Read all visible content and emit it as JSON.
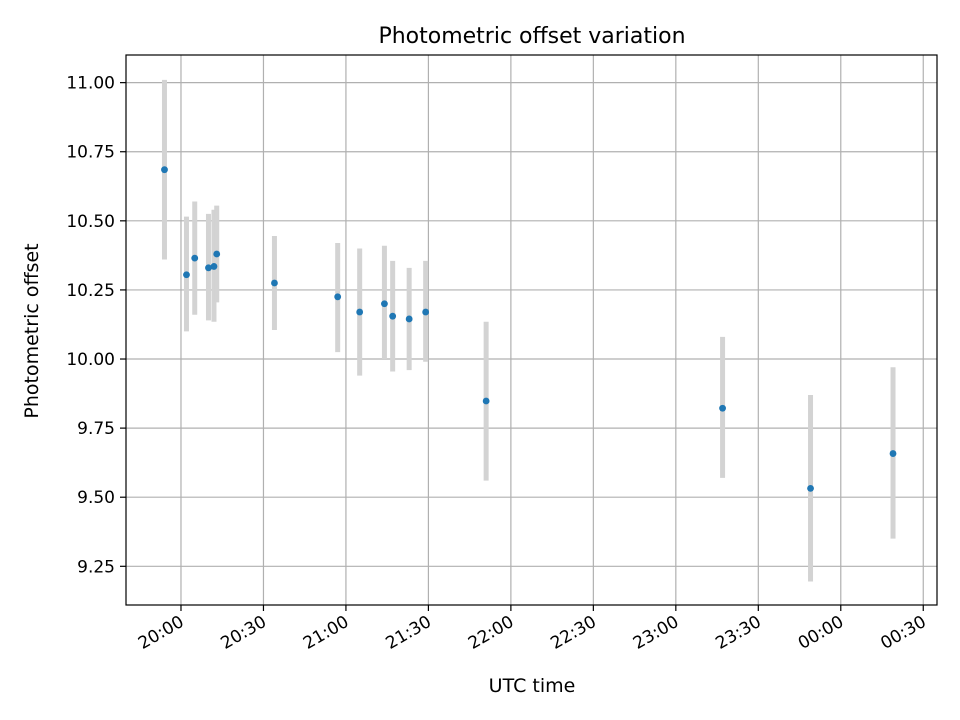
{
  "chart_data": {
    "type": "scatter",
    "title": "Photometric offset variation",
    "xlabel": "UTC time",
    "ylabel": "Photometric offset",
    "grid": true,
    "colors": {
      "points": "#1f77b4",
      "errorbars": "#d3d3d3",
      "grid": "#b0b0b0"
    },
    "xlim": [
      "19:40",
      "00:35"
    ],
    "ylim": [
      9.11,
      11.1
    ],
    "x_ticks": [
      "20:00",
      "20:30",
      "21:00",
      "21:30",
      "22:00",
      "22:30",
      "23:00",
      "23:30",
      "00:00",
      "00:30"
    ],
    "y_ticks": [
      "9.25",
      "9.50",
      "9.75",
      "10.00",
      "10.25",
      "10.50",
      "10.75",
      "11.00"
    ],
    "points": [
      {
        "x": "19:54",
        "y": 10.685,
        "err_low": 10.36,
        "err_high": 11.01
      },
      {
        "x": "20:02",
        "y": 10.305,
        "err_low": 10.1,
        "err_high": 10.515
      },
      {
        "x": "20:05",
        "y": 10.365,
        "err_low": 10.16,
        "err_high": 10.57
      },
      {
        "x": "20:10",
        "y": 10.33,
        "err_low": 10.14,
        "err_high": 10.525
      },
      {
        "x": "20:12",
        "y": 10.335,
        "err_low": 10.135,
        "err_high": 10.54
      },
      {
        "x": "20:13",
        "y": 10.38,
        "err_low": 10.205,
        "err_high": 10.555
      },
      {
        "x": "20:34",
        "y": 10.275,
        "err_low": 10.105,
        "err_high": 10.445
      },
      {
        "x": "20:57",
        "y": 10.225,
        "err_low": 10.025,
        "err_high": 10.42
      },
      {
        "x": "21:05",
        "y": 10.17,
        "err_low": 9.94,
        "err_high": 10.4
      },
      {
        "x": "21:14",
        "y": 10.2,
        "err_low": 10.0,
        "err_high": 10.41
      },
      {
        "x": "21:17",
        "y": 10.155,
        "err_low": 9.955,
        "err_high": 10.355
      },
      {
        "x": "21:23",
        "y": 10.145,
        "err_low": 9.96,
        "err_high": 10.33
      },
      {
        "x": "21:29",
        "y": 10.17,
        "err_low": 9.99,
        "err_high": 10.355
      },
      {
        "x": "21:51",
        "y": 9.848,
        "err_low": 9.56,
        "err_high": 10.135
      },
      {
        "x": "23:17",
        "y": 9.822,
        "err_low": 9.57,
        "err_high": 10.08
      },
      {
        "x": "23:49",
        "y": 9.532,
        "err_low": 9.195,
        "err_high": 9.87
      },
      {
        "x": "00:19",
        "y": 9.658,
        "err_low": 9.35,
        "err_high": 9.97
      }
    ]
  }
}
